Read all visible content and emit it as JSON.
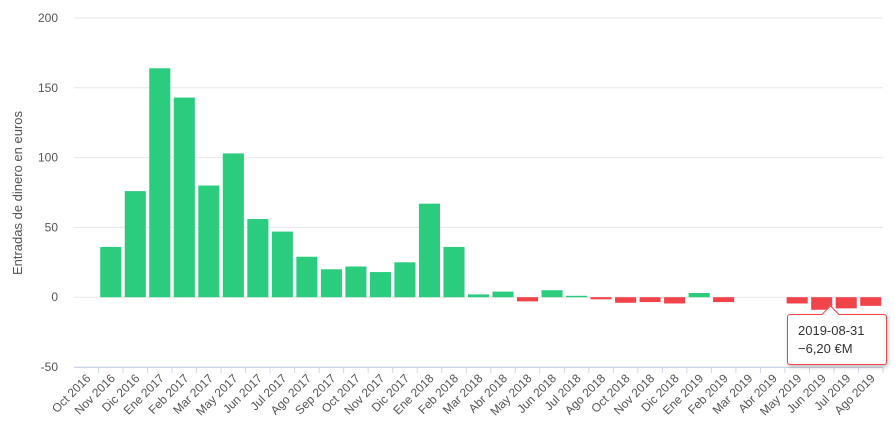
{
  "chart_data": {
    "type": "bar",
    "ylabel": "Entradas de dinero en euros",
    "ylim": [
      -50,
      200
    ],
    "yticks": [
      -50,
      0,
      50,
      100,
      150,
      200
    ],
    "grid": true,
    "categories": [
      "Oct 2016",
      "Nov 2016",
      "Dic 2016",
      "Ene 2017",
      "Feb 2017",
      "Mar 2017",
      "May 2017",
      "Jun 2017",
      "Jul 2017",
      "Ago 2017",
      "Sep 2017",
      "Oct 2017",
      "Nov 2017",
      "Dic 2017",
      "Ene 2018",
      "Feb 2018",
      "Mar 2018",
      "Abr 2018",
      "May 2018",
      "Jun 2018",
      "Jul 2018",
      "Ago 2018",
      "Oct 2018",
      "Nov 2018",
      "Dic 2018",
      "Ene 2019",
      "Feb 2019",
      "Mar 2019",
      "Abr 2019",
      "May 2019",
      "Jun 2019",
      "Jul 2019",
      "Ago 2019"
    ],
    "values": [
      0,
      36,
      76,
      164,
      143,
      80,
      103,
      56,
      47,
      29,
      20,
      22,
      18,
      25,
      67,
      36,
      2,
      4,
      -3,
      5,
      1,
      -1.5,
      -4,
      -3.5,
      -4.5,
      3,
      -3.5,
      0,
      0,
      -4.5,
      -9,
      -8,
      -6.2
    ],
    "colors": {
      "positive": "#2ccc7f",
      "negative": "#f1444a",
      "grid": "#e6e6e6",
      "axis": "#ccd6eb"
    }
  },
  "tooltip": {
    "date": "2019-08-31",
    "value": "−6,20 €M"
  }
}
